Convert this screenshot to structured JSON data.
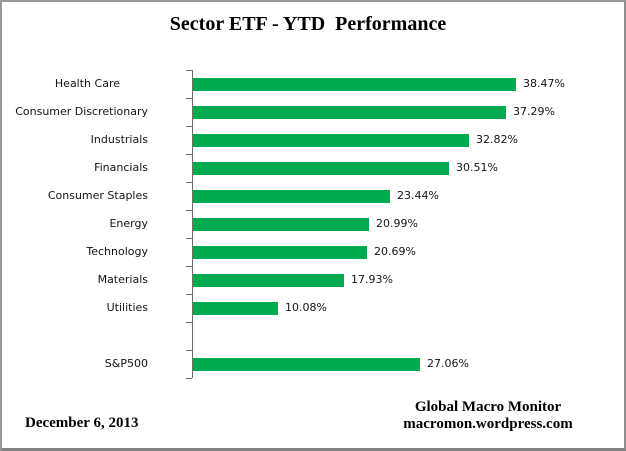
{
  "chart_data": {
    "type": "bar",
    "orientation": "horizontal",
    "title": "Sector ETF - YTD  Performance",
    "categories": [
      "Health Care",
      "Consumer Discretionary",
      "Industrials",
      "Financials",
      "Consumer Staples",
      "Energy",
      "Technology",
      "Materials",
      "Utilities",
      "",
      "S&P500"
    ],
    "values": [
      38.47,
      37.29,
      32.82,
      30.51,
      23.44,
      20.99,
      20.69,
      17.93,
      10.08,
      null,
      27.06
    ],
    "value_labels": [
      "38.47%",
      "37.29%",
      "32.82%",
      "30.51%",
      "23.44%",
      "20.99%",
      "20.69%",
      "17.93%",
      "10.08%",
      "",
      "27.06%"
    ],
    "bar_color": "#00AB4F",
    "axis_color": "#6e6e6e",
    "text_color": "#141414",
    "grid": false,
    "legend": false
  },
  "footer": {
    "date": "December 6, 2013",
    "source_name": "Global Macro Monitor",
    "source_url": "macromon.wordpress.com"
  }
}
